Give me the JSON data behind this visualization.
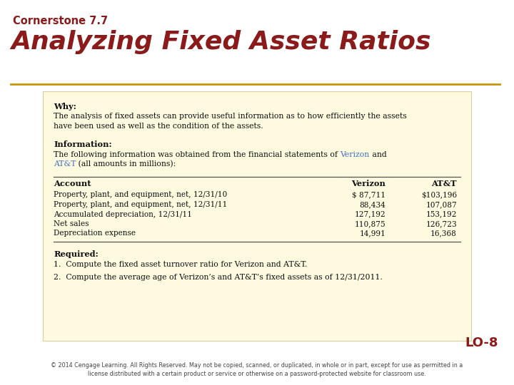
{
  "title_small": "Cornerstone 7.7",
  "title_large": "Analyzing Fixed Asset Ratios",
  "title_color": "#8B1A1A",
  "divider_color": "#C8960A",
  "bg_color": "#FFFFFF",
  "box_bg_color": "#FDFAE0",
  "box_border_color": "#D8D0A0",
  "why_bold": "Why:",
  "why_text_line1": "The analysis of fixed assets can provide useful information as to how efficiently the assets",
  "why_text_line2": "have been used as well as the condition of the assets.",
  "info_bold": "Information:",
  "info_line1_pre": "The following information was obtained from the financial statements of ",
  "info_line1_verizon": "Verizon",
  "info_line1_post": " and",
  "info_line2_att": "AT&T",
  "info_line2_post": " (all amounts in millions):",
  "verizon_color": "#4472C4",
  "att_color": "#4472C4",
  "table_header": [
    "Account",
    "Verizon",
    "AT&T"
  ],
  "table_rows": [
    [
      "Property, plant, and equipment, net, 12/31/10",
      "$ 87,711",
      "$103,196"
    ],
    [
      "Property, plant, and equipment, net, 12/31/11",
      "88,434",
      "107,087"
    ],
    [
      "Accumulated depreciation, 12/31/11",
      "127,192",
      "153,192"
    ],
    [
      "Net sales",
      "110,875",
      "126,723"
    ],
    [
      "Depreciation expense",
      "14,991",
      "16,368"
    ]
  ],
  "required_bold": "Required:",
  "req1": "1.  Compute the fixed asset turnover ratio for Verizon and AT&T.",
  "req2": "2.  Compute the average age of Verizon’s and AT&T’s fixed assets as of 12/31/2011.",
  "lo_text": "LO-8",
  "lo_color": "#8B1A1A",
  "footer_line1": "© 2014 Cengage Learning. All Rights Reserved. May not be copied, scanned, or duplicated, in whole or in part, except for use as permitted in a",
  "footer_line2": "license distributed with a certain product or service or otherwise on a password-protected website for classroom use.",
  "footer_color": "#444444"
}
